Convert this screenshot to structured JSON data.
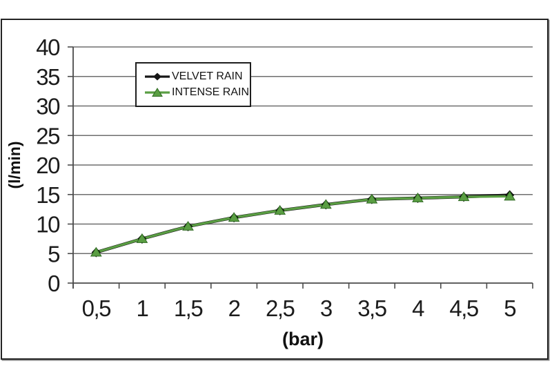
{
  "chart_data": {
    "type": "line",
    "title": "",
    "xlabel": "(bar)",
    "ylabel": "(l/min)",
    "categories": [
      "0,5",
      "1",
      "1,5",
      "2",
      "2,5",
      "3",
      "3,5",
      "4",
      "4,5",
      "5"
    ],
    "x_numeric": [
      0.5,
      1,
      1.5,
      2,
      2.5,
      3,
      3.5,
      4,
      4.5,
      5
    ],
    "series": [
      {
        "name": "VELVET RAIN",
        "marker": "diamond",
        "color": "#161616",
        "marker_edge": "#000000",
        "values": [
          5.2,
          7.5,
          9.6,
          11.1,
          12.3,
          13.3,
          14.2,
          14.4,
          14.6,
          14.9
        ]
      },
      {
        "name": "INTENSE RAIN",
        "marker": "triangle",
        "color": "#5a9e43",
        "marker_edge": "#2e6a21",
        "values": [
          5.2,
          7.5,
          9.6,
          11.1,
          12.3,
          13.3,
          14.2,
          14.4,
          14.6,
          14.7
        ]
      }
    ],
    "y_axis": {
      "min": 0,
      "max": 40,
      "step": 5
    },
    "grid": "horizontal-only",
    "legend_position": "top-left-inside",
    "colors": {
      "grid": "#6e6e6e",
      "axis": "#4a4a4a",
      "tick_text": "#1c1c1c",
      "frame_border": "#232323",
      "background": "#ffffff"
    }
  }
}
